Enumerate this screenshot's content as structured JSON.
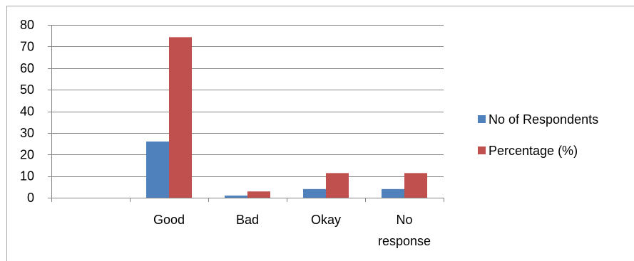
{
  "chart_data": {
    "type": "bar",
    "categories": [
      "",
      "Good",
      "Bad",
      "Okay",
      "No response"
    ],
    "category_label_lines": [
      [],
      [
        "Good"
      ],
      [
        "Bad"
      ],
      [
        "Okay"
      ],
      [
        "No",
        "response"
      ]
    ],
    "series": [
      {
        "name": "No of Respondents",
        "color": "#4F81BD",
        "values": [
          0,
          26,
          1,
          4,
          4
        ]
      },
      {
        "name": "Percentage (%)",
        "color": "#C0504D",
        "values": [
          0,
          74.3,
          2.9,
          11.4,
          11.4
        ]
      }
    ],
    "ylim": [
      0,
      80
    ],
    "yticks": [
      0,
      10,
      20,
      30,
      40,
      50,
      60,
      70,
      80
    ],
    "grid": true,
    "legend_position": "right"
  }
}
